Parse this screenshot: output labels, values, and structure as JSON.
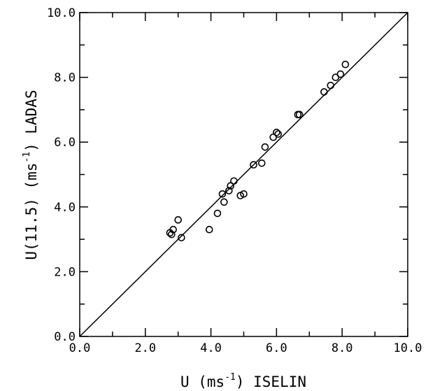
{
  "chart_data": {
    "type": "scatter",
    "title": "",
    "xlabel": {
      "prefix": "U (ms",
      "sup": "-1",
      "suffix": ") ISELIN"
    },
    "ylabel": {
      "prefix": "U(11.5) (ms",
      "sup": "-1",
      "suffix": ") LADAS"
    },
    "xlim": [
      0,
      10
    ],
    "ylim": [
      0,
      10
    ],
    "x_ticks": [
      "0.0",
      "2.0",
      "4.0",
      "6.0",
      "8.0",
      "10.0"
    ],
    "y_ticks": [
      "0.0",
      "2.0",
      "4.0",
      "6.0",
      "8.0",
      "10.0"
    ],
    "reference_line": {
      "from": [
        0,
        0
      ],
      "to": [
        10,
        10
      ]
    },
    "grid": false,
    "points": [
      {
        "x": 2.75,
        "y": 3.2
      },
      {
        "x": 2.8,
        "y": 3.15
      },
      {
        "x": 2.85,
        "y": 3.3
      },
      {
        "x": 3.0,
        "y": 3.6
      },
      {
        "x": 3.1,
        "y": 3.05
      },
      {
        "x": 3.95,
        "y": 3.3
      },
      {
        "x": 4.2,
        "y": 3.8
      },
      {
        "x": 4.35,
        "y": 4.4
      },
      {
        "x": 4.4,
        "y": 4.15
      },
      {
        "x": 4.55,
        "y": 4.5
      },
      {
        "x": 4.6,
        "y": 4.65
      },
      {
        "x": 4.7,
        "y": 4.8
      },
      {
        "x": 4.9,
        "y": 4.35
      },
      {
        "x": 5.0,
        "y": 4.4
      },
      {
        "x": 5.3,
        "y": 5.3
      },
      {
        "x": 5.55,
        "y": 5.35
      },
      {
        "x": 5.65,
        "y": 5.85
      },
      {
        "x": 5.9,
        "y": 6.15
      },
      {
        "x": 6.0,
        "y": 6.3
      },
      {
        "x": 6.05,
        "y": 6.25
      },
      {
        "x": 6.65,
        "y": 6.85
      },
      {
        "x": 6.7,
        "y": 6.85
      },
      {
        "x": 7.45,
        "y": 7.55
      },
      {
        "x": 7.65,
        "y": 7.75
      },
      {
        "x": 7.8,
        "y": 8.0
      },
      {
        "x": 7.95,
        "y": 8.1
      },
      {
        "x": 8.1,
        "y": 8.4
      }
    ]
  }
}
